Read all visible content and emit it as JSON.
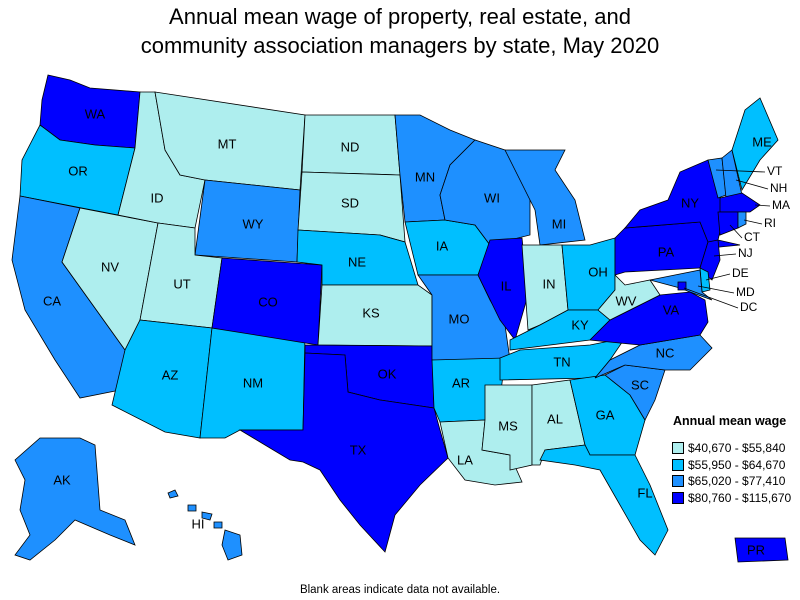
{
  "title_line1": "Annual mean wage of property, real estate, and",
  "title_line2": "community association managers by state, May 2020",
  "legend": {
    "title": "Annual mean wage",
    "items": [
      {
        "label": "$40,670 - $55,840",
        "color": "#aeeeee"
      },
      {
        "label": "$55,950 - $64,670",
        "color": "#00bfff"
      },
      {
        "label": "$65,020 - $77,410",
        "color": "#1e90ff"
      },
      {
        "label": "$80,760 - $115,670",
        "color": "#0000ff"
      }
    ]
  },
  "footnote": "Blank areas indicate data not available.",
  "states": {
    "WA": {
      "tier": 3
    },
    "OR": {
      "tier": 1
    },
    "CA": {
      "tier": 2
    },
    "NV": {
      "tier": 0
    },
    "ID": {
      "tier": 0
    },
    "MT": {
      "tier": 0
    },
    "WY": {
      "tier": 2
    },
    "UT": {
      "tier": 0
    },
    "AZ": {
      "tier": 1
    },
    "NM": {
      "tier": 1
    },
    "CO": {
      "tier": 3
    },
    "ND": {
      "tier": 0
    },
    "SD": {
      "tier": 0
    },
    "NE": {
      "tier": 1
    },
    "KS": {
      "tier": 0
    },
    "OK": {
      "tier": 3
    },
    "TX": {
      "tier": 3
    },
    "MN": {
      "tier": 2
    },
    "IA": {
      "tier": 1
    },
    "MO": {
      "tier": 2
    },
    "AR": {
      "tier": 1
    },
    "LA": {
      "tier": 0
    },
    "WI": {
      "tier": 2
    },
    "IL": {
      "tier": 3
    },
    "MI": {
      "tier": 2
    },
    "IN": {
      "tier": 0
    },
    "OH": {
      "tier": 1
    },
    "KY": {
      "tier": 1
    },
    "TN": {
      "tier": 1
    },
    "MS": {
      "tier": 0
    },
    "AL": {
      "tier": 0
    },
    "GA": {
      "tier": 1
    },
    "FL": {
      "tier": 1
    },
    "SC": {
      "tier": 2
    },
    "NC": {
      "tier": 2
    },
    "VA": {
      "tier": 3
    },
    "WV": {
      "tier": 0
    },
    "PA": {
      "tier": 3
    },
    "NY": {
      "tier": 3
    },
    "ME": {
      "tier": 1
    },
    "VT": {
      "tier": 2
    },
    "NH": {
      "tier": 2
    },
    "MA": {
      "tier": 3
    },
    "RI": {
      "tier": 2
    },
    "CT": {
      "tier": 3
    },
    "NJ": {
      "tier": 3
    },
    "DE": {
      "tier": 1
    },
    "MD": {
      "tier": 2
    },
    "DC": {
      "tier": 3
    },
    "AK": {
      "tier": 2
    },
    "HI": {
      "tier": 2
    },
    "PR": {
      "tier": 3
    }
  }
}
